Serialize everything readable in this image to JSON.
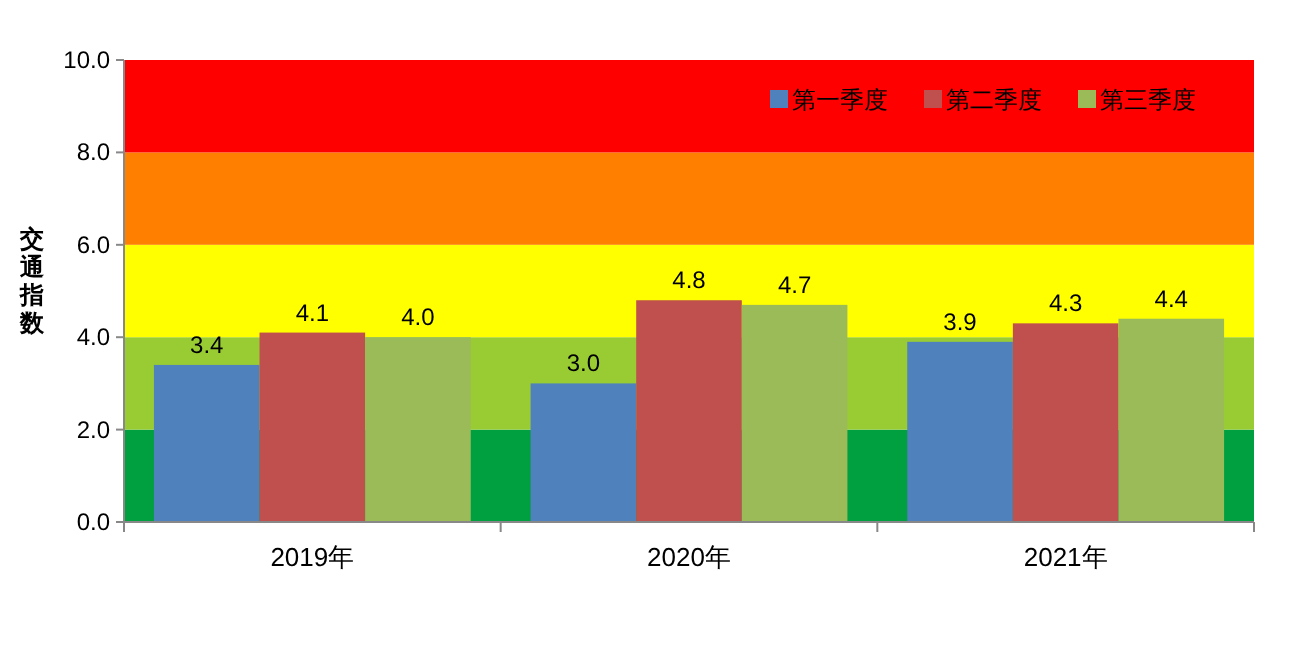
{
  "chart_data": {
    "type": "bar",
    "ylabel": "交通指数",
    "categories": [
      "2019年",
      "2020年",
      "2021年"
    ],
    "series": [
      {
        "name": "第一季度",
        "color": "#4f81bd",
        "values": [
          3.4,
          3.0,
          3.9
        ],
        "value_labels": [
          "3.4",
          "3.0",
          "3.9"
        ]
      },
      {
        "name": "第二季度",
        "color": "#c0504d",
        "values": [
          4.1,
          4.8,
          4.3
        ],
        "value_labels": [
          "4.1",
          "4.8",
          "4.3"
        ]
      },
      {
        "name": "第三季度",
        "color": "#9bbb59",
        "values": [
          4.0,
          4.7,
          4.4
        ],
        "value_labels": [
          "4.0",
          "4.7",
          "4.4"
        ]
      }
    ],
    "ylim": [
      0,
      10
    ],
    "yticks": [
      {
        "value": 0,
        "label": "0.0"
      },
      {
        "value": 2,
        "label": "2.0"
      },
      {
        "value": 4,
        "label": "4.0"
      },
      {
        "value": 6,
        "label": "6.0"
      },
      {
        "value": 8,
        "label": "8.0"
      },
      {
        "value": 10,
        "label": "10.0"
      }
    ],
    "bands": [
      {
        "axis": "y",
        "from": 0,
        "to": 2,
        "color": "#00a040"
      },
      {
        "axis": "y",
        "from": 2,
        "to": 4,
        "color": "#99cc33"
      },
      {
        "axis": "y",
        "from": 4,
        "to": 6,
        "color": "#ffff00"
      },
      {
        "axis": "y",
        "from": 6,
        "to": 8,
        "color": "#ff8000"
      },
      {
        "axis": "y",
        "from": 8,
        "to": 10,
        "color": "#ff0000"
      }
    ],
    "legend": "top right",
    "grid": false
  }
}
